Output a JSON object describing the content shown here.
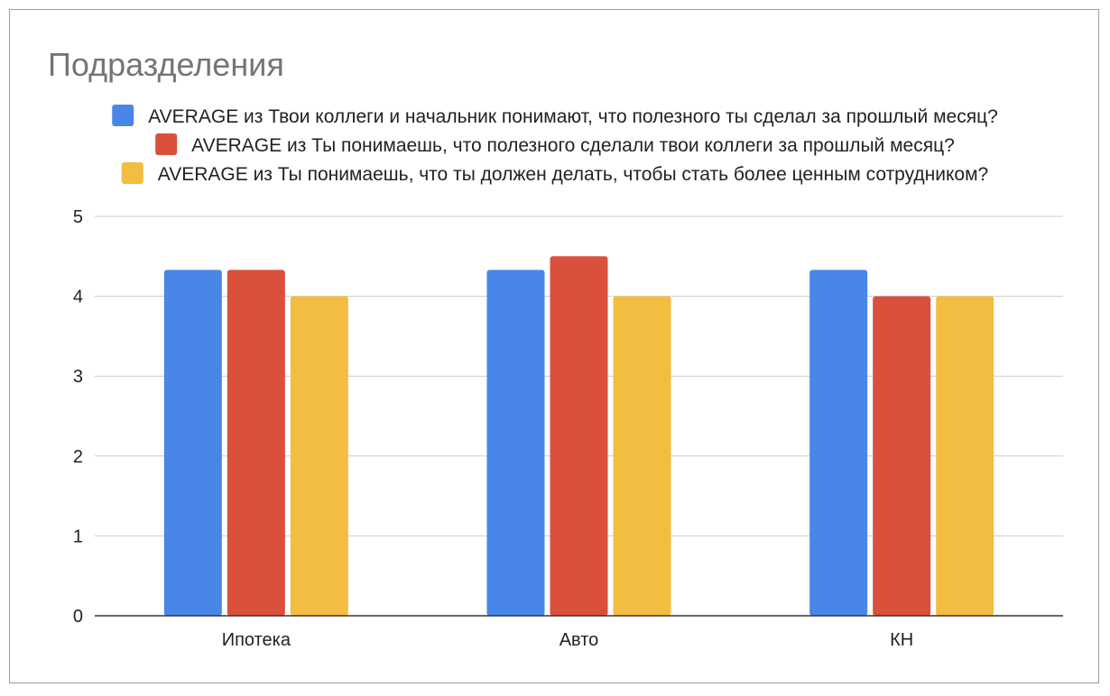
{
  "chart_data": {
    "type": "bar",
    "title": "Подразделения",
    "xlabel": "",
    "ylabel": "",
    "categories": [
      "Ипотека",
      "Авто",
      "КН"
    ],
    "series": [
      {
        "name": "AVERAGE из Твои коллеги и начальник понимают, что полезного ты сделал за прошлый месяц?",
        "color": "#4a86e8",
        "values": [
          4.33,
          4.33,
          4.33
        ]
      },
      {
        "name": "AVERAGE из Ты понимаешь, что полезного сделали твои коллеги за прошлый месяц?",
        "color": "#db4f3d",
        "values": [
          4.33,
          4.5,
          4.0
        ]
      },
      {
        "name": "AVERAGE из Ты понимаешь, что ты должен делать, чтобы стать более ценным сотрудником?",
        "color": "#f3bd41",
        "values": [
          4.0,
          4.0,
          4.0
        ]
      }
    ],
    "ylim": [
      0,
      5
    ],
    "yticks": [
      "0",
      "1",
      "2",
      "3",
      "4",
      "5"
    ],
    "grid": true,
    "legend_position": "top"
  }
}
